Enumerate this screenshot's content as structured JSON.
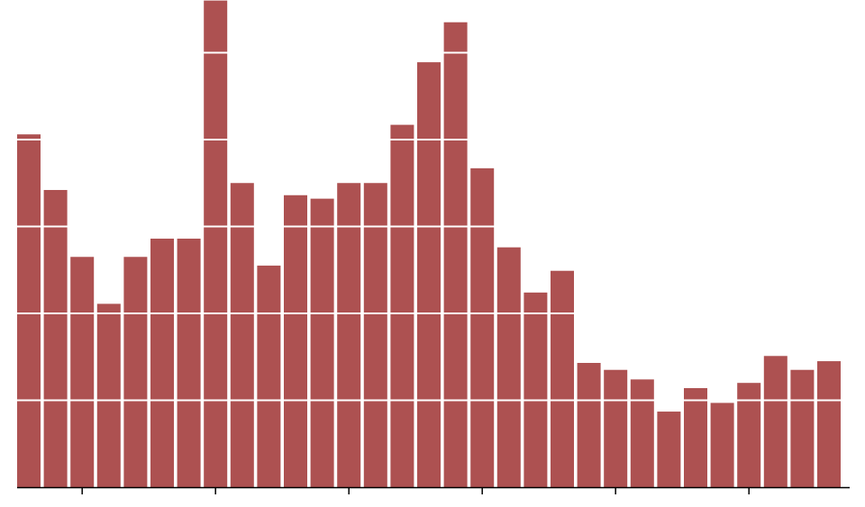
{
  "chart_data": {
    "type": "bar",
    "values": [
      4.06,
      3.42,
      2.65,
      2.11,
      2.65,
      2.86,
      2.86,
      5.6,
      3.5,
      2.55,
      3.36,
      3.32,
      3.5,
      3.5,
      4.17,
      4.89,
      5.35,
      3.67,
      2.76,
      2.24,
      2.49,
      1.43,
      1.35,
      1.24,
      0.87,
      1.14,
      0.97,
      1.2,
      1.51,
      1.35,
      1.45
    ],
    "color": "#ad5151",
    "ylim": [
      0,
      5.6
    ],
    "yticks": [
      1,
      2,
      3,
      4,
      5
    ],
    "grid": true
  }
}
